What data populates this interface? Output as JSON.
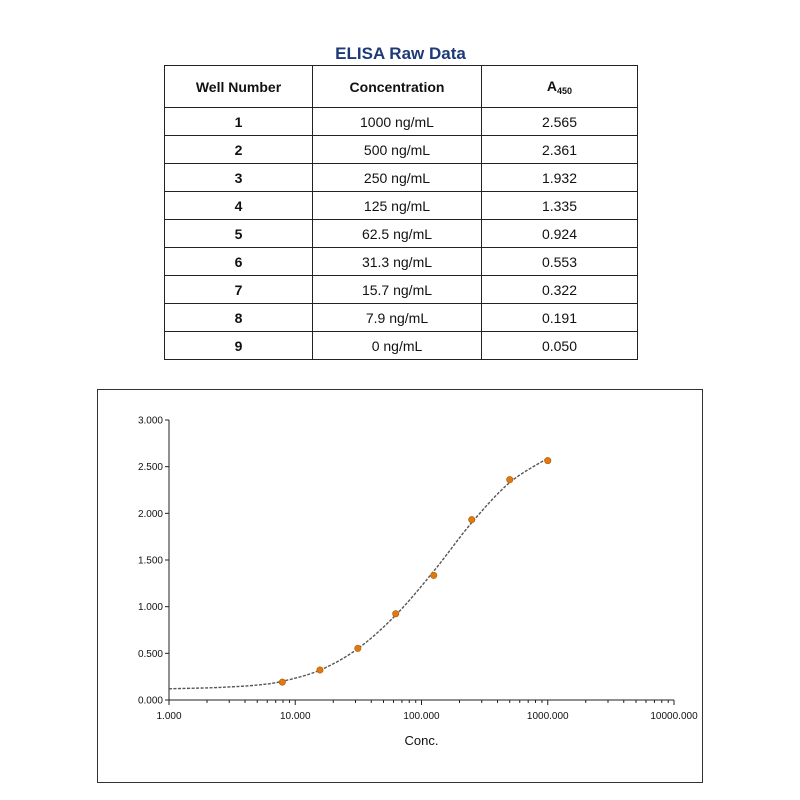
{
  "table": {
    "title": "ELISA Raw Data",
    "headers": {
      "well": "Well Number",
      "concentration": "Concentration",
      "absorbance_main": "A",
      "absorbance_sub": "450"
    },
    "rows": [
      {
        "well": "1",
        "concentration": "1000 ng/mL",
        "absorbance": "2.565"
      },
      {
        "well": "2",
        "concentration": "500 ng/mL",
        "absorbance": "2.361"
      },
      {
        "well": "3",
        "concentration": "250 ng/mL",
        "absorbance": "1.932"
      },
      {
        "well": "4",
        "concentration": "125 ng/mL",
        "absorbance": "1.335"
      },
      {
        "well": "5",
        "concentration": "62.5 ng/mL",
        "absorbance": "0.924"
      },
      {
        "well": "6",
        "concentration": "31.3 ng/mL",
        "absorbance": "0.553"
      },
      {
        "well": "7",
        "concentration": "15.7 ng/mL",
        "absorbance": "0.322"
      },
      {
        "well": "8",
        "concentration": "7.9 ng/mL",
        "absorbance": "0.191"
      },
      {
        "well": "9",
        "concentration": "0 ng/mL",
        "absorbance": "0.050"
      }
    ]
  },
  "chart_data": {
    "type": "scatter",
    "title": "",
    "xlabel": "Conc.",
    "ylabel": "",
    "xscale": "log",
    "xlim": [
      1,
      10000
    ],
    "ylim": [
      0,
      3
    ],
    "x_ticks": [
      1,
      10,
      100,
      1000,
      10000
    ],
    "x_tick_labels": [
      "1.000",
      "10.000",
      "100.000",
      "1000.000",
      "10000.000"
    ],
    "y_ticks": [
      0,
      0.5,
      1,
      1.5,
      2,
      2.5,
      3
    ],
    "y_tick_labels": [
      "0.000",
      "0.500",
      "1.000",
      "1.500",
      "2.000",
      "2.500",
      "3.000"
    ],
    "grid": false,
    "series": [
      {
        "x": [
          7.9,
          15.7,
          31.3,
          62.5,
          125,
          250,
          500,
          1000
        ],
        "y": [
          0.191,
          0.322,
          0.553,
          0.924,
          1.335,
          1.932,
          2.361,
          2.565
        ],
        "color": "#e07a10"
      }
    ],
    "fit_curve": {
      "type": "4PL",
      "x": [
        1,
        2,
        3,
        5,
        7.9,
        15.7,
        31.3,
        62.5,
        125,
        250,
        500,
        1000
      ],
      "y": [
        0.12,
        0.13,
        0.14,
        0.16,
        0.2,
        0.32,
        0.55,
        0.91,
        1.38,
        1.9,
        2.33,
        2.59
      ],
      "color": "#555555"
    }
  }
}
